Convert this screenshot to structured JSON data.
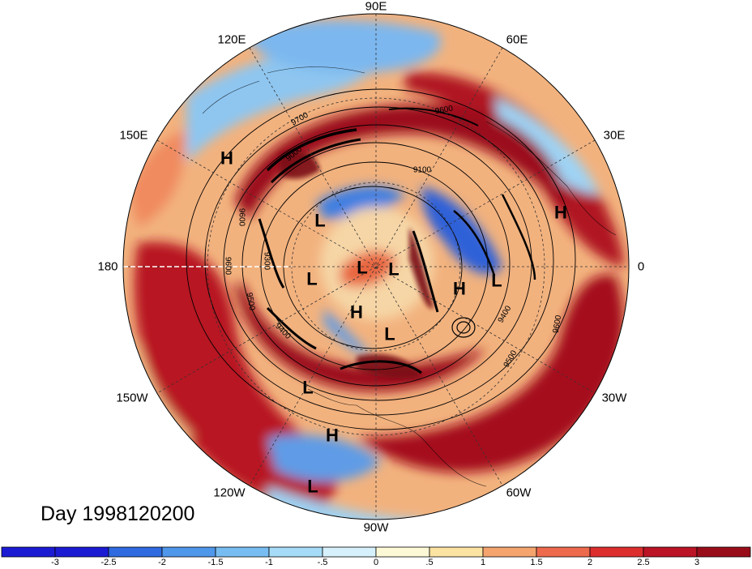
{
  "title": "Day 1998120200",
  "longitude_labels": [
    {
      "text": "90E"
    },
    {
      "text": "60E"
    },
    {
      "text": "30E"
    },
    {
      "text": "0"
    },
    {
      "text": "30W"
    },
    {
      "text": "60W"
    },
    {
      "text": "90W"
    },
    {
      "text": "120W"
    },
    {
      "text": "150W"
    },
    {
      "text": "180"
    },
    {
      "text": "150E"
    },
    {
      "text": "120E"
    }
  ],
  "pressure_systems": [
    {
      "type": "H"
    },
    {
      "type": "L"
    },
    {
      "type": "H"
    },
    {
      "type": "L"
    },
    {
      "type": "L"
    },
    {
      "type": "L"
    },
    {
      "type": "L"
    },
    {
      "type": "H"
    },
    {
      "type": "H"
    },
    {
      "type": "L"
    },
    {
      "type": "L"
    },
    {
      "type": "H"
    },
    {
      "type": "L"
    }
  ],
  "contour_labels": [
    "9700",
    "9600",
    "9600",
    "9600",
    "9500",
    "9400",
    "9300",
    "9100",
    "9000",
    "9400",
    "9500",
    "9600"
  ],
  "colorbar": {
    "ticks": [
      "-3",
      "-2.5",
      "-2",
      "-1.5",
      "-1",
      "-.5",
      "0",
      ".5",
      "1",
      "1.5",
      "2",
      "2.5",
      "3"
    ],
    "colors": [
      "#1b1bd4",
      "#2f6ae0",
      "#4f97ea",
      "#78bdf2",
      "#a6dcf7",
      "#d6f1fb",
      "#fdf9d7",
      "#fbe3a2",
      "#f5a46e",
      "#ee6a4c",
      "#dd2e2e",
      "#bb1424",
      "#990d1b"
    ]
  }
}
